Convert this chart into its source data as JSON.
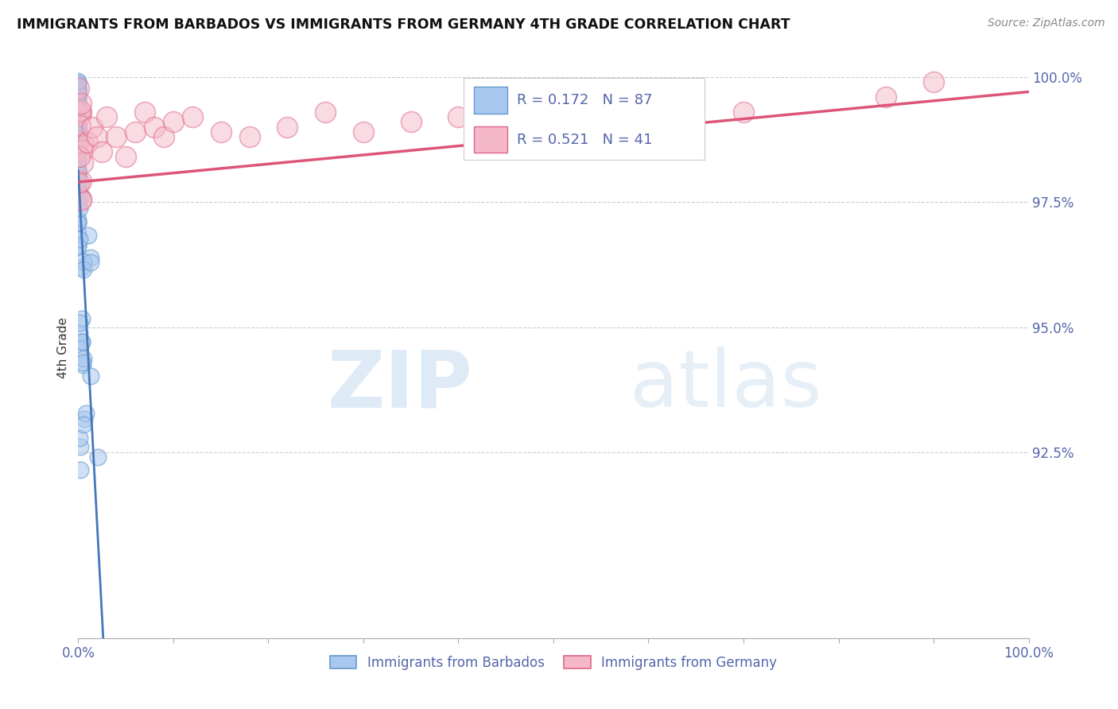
{
  "title": "IMMIGRANTS FROM BARBADOS VS IMMIGRANTS FROM GERMANY 4TH GRADE CORRELATION CHART",
  "source": "Source: ZipAtlas.com",
  "ylabel": "4th Grade",
  "xlim": [
    0.0,
    1.0
  ],
  "ylim": [
    0.888,
    1.004
  ],
  "yticks": [
    0.925,
    0.95,
    0.975,
    1.0
  ],
  "ytick_labels": [
    "92.5%",
    "95.0%",
    "97.5%",
    "100.0%"
  ],
  "xticks": [
    0.0,
    0.1,
    0.2,
    0.3,
    0.4,
    0.5,
    0.6,
    0.7,
    0.8,
    0.9,
    1.0
  ],
  "xtick_labels": [
    "0.0%",
    "",
    "",
    "",
    "",
    "",
    "",
    "",
    "",
    "",
    "100.0%"
  ],
  "r_barbados": 0.172,
  "n_barbados": 87,
  "r_germany": 0.521,
  "n_germany": 41,
  "barbados_color": "#a8c8f0",
  "germany_color": "#f5b8c8",
  "barbados_edge_color": "#6699cc",
  "germany_edge_color": "#dd6688",
  "barbados_line_color": "#4477bb",
  "germany_line_color": "#dd5577",
  "legend_label_barbados": "Immigrants from Barbados",
  "legend_label_germany": "Immigrants from Germany",
  "watermark_zip": "ZIP",
  "watermark_atlas": "atlas",
  "background_color": "#ffffff",
  "grid_color": "#cccccc",
  "tick_label_color": "#5566aa",
  "title_color": "#111111",
  "source_color": "#888888",
  "ylabel_color": "#333333"
}
